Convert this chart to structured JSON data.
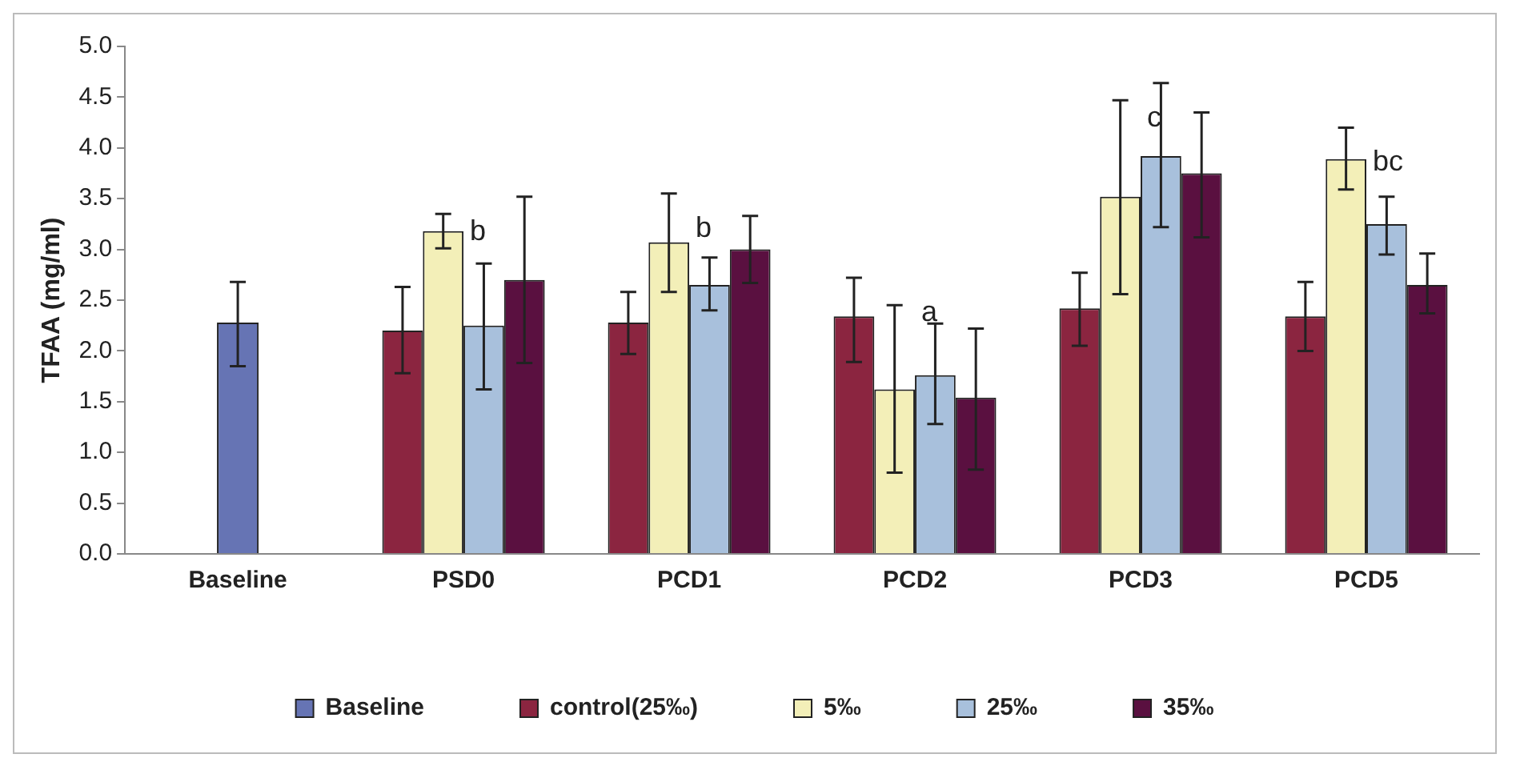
{
  "chart_data": {
    "type": "bar",
    "ylabel": "TFAA (mg/ml)",
    "categories": [
      "Baseline",
      "PSD0",
      "PCD1",
      "PCD2",
      "PCD3",
      "PCD5"
    ],
    "ylim": [
      0,
      5
    ],
    "yticks": [
      {
        "value": 0,
        "label": "0.0"
      },
      {
        "value": 0.5,
        "label": "0.5"
      },
      {
        "value": 1,
        "label": "1.0"
      },
      {
        "value": 1.5,
        "label": "1.5"
      },
      {
        "value": 2,
        "label": "2.0"
      },
      {
        "value": 2.5,
        "label": "2.5"
      },
      {
        "value": 3,
        "label": "3.0"
      },
      {
        "value": 3.5,
        "label": "3.5"
      },
      {
        "value": 4,
        "label": "4.0"
      },
      {
        "value": 4.5,
        "label": "4.5"
      },
      {
        "value": 5,
        "label": "5.0"
      }
    ],
    "grid": false,
    "legend": "bottom",
    "series": [
      {
        "name": "Baseline",
        "color": "#6674b4",
        "values": [
          2.28,
          null,
          null,
          null,
          null,
          null
        ],
        "errors": [
          [
            1.85,
            2.68
          ],
          null,
          null,
          null,
          null,
          null
        ]
      },
      {
        "name": "control(25‰)",
        "color": "#8b2540",
        "values": [
          null,
          2.2,
          2.28,
          2.34,
          2.42,
          2.34
        ],
        "errors": [
          null,
          [
            1.78,
            2.63
          ],
          [
            1.97,
            2.58
          ],
          [
            1.89,
            2.72
          ],
          [
            2.05,
            2.77
          ],
          [
            2.0,
            2.68
          ]
        ]
      },
      {
        "name": "5‰",
        "color": "#f3efb8",
        "values": [
          null,
          3.18,
          3.07,
          1.62,
          3.52,
          3.89
        ],
        "errors": [
          null,
          [
            3.01,
            3.35
          ],
          [
            2.58,
            3.55
          ],
          [
            0.8,
            2.45
          ],
          [
            2.56,
            4.47
          ],
          [
            3.59,
            4.2
          ]
        ]
      },
      {
        "name": "25‰",
        "color": "#a8c0dc",
        "values": [
          null,
          2.25,
          2.65,
          1.76,
          3.92,
          3.25
        ],
        "errors": [
          null,
          [
            1.62,
            2.86
          ],
          [
            2.4,
            2.92
          ],
          [
            1.28,
            2.27
          ],
          [
            3.22,
            4.64
          ],
          [
            2.95,
            3.52
          ]
        ]
      },
      {
        "name": "35‰",
        "color": "#5a1040",
        "values": [
          null,
          2.7,
          3.0,
          1.54,
          3.75,
          2.65
        ],
        "errors": [
          null,
          [
            1.88,
            3.52
          ],
          [
            2.67,
            3.33
          ],
          [
            0.83,
            2.22
          ],
          [
            3.12,
            4.35
          ],
          [
            2.37,
            2.96
          ]
        ]
      }
    ],
    "annotations": [
      "b",
      "b",
      "a",
      "c",
      "bc"
    ]
  }
}
